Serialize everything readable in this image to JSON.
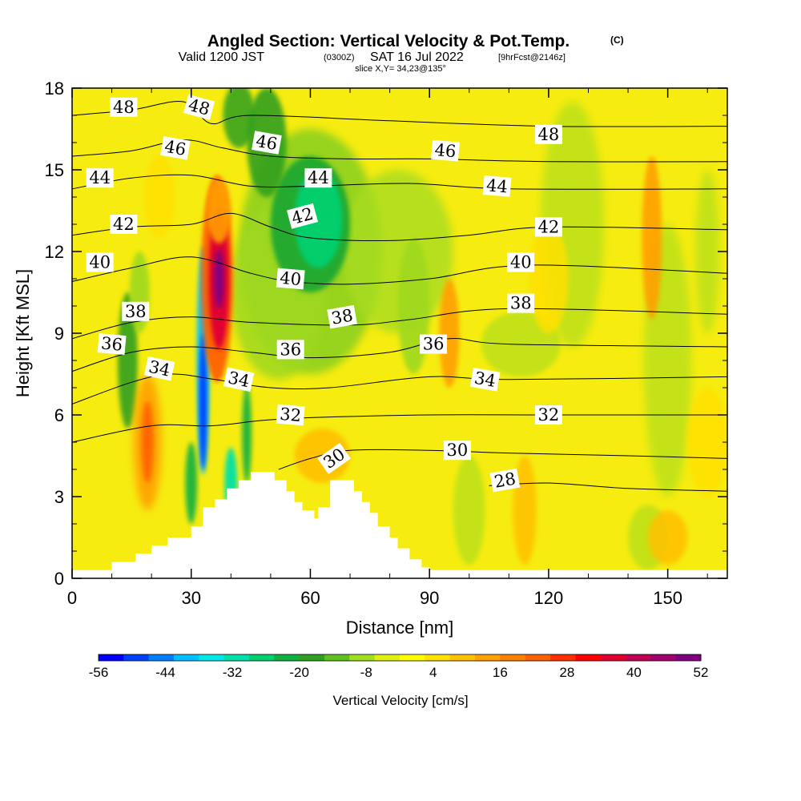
{
  "title": {
    "main": "Angled Section: Vertical Velocity & Pot.Temp.",
    "units_tag": "(C)",
    "valid_prefix": "Valid 1200 JST",
    "utc_tag": "(0300Z)",
    "valid_date": "SAT 16 Jul 2022",
    "forecast_tag": "[9hrFcst@2146z]",
    "slice": "slice X,Y= 34,23@135°"
  },
  "chart_data": {
    "type": "heatmap",
    "xlabel": "Distance [nm]",
    "ylabel": "Height [Kft MSL]",
    "xlim": [
      0,
      165
    ],
    "ylim": [
      0,
      18
    ],
    "x_ticks": [
      "0",
      "30",
      "60",
      "90",
      "120",
      "150"
    ],
    "y_ticks": [
      "0",
      "3",
      "6",
      "9",
      "12",
      "15",
      "18"
    ],
    "x_tick_values": [
      0,
      30,
      60,
      90,
      120,
      150
    ],
    "y_tick_values": [
      0,
      3,
      6,
      9,
      12,
      15,
      18
    ],
    "colorbar": {
      "title": "Vertical Velocity [cm/s]",
      "tick_labels": [
        "-56",
        "-44",
        "-32",
        "-20",
        "-8",
        "4",
        "16",
        "28",
        "40",
        "52"
      ],
      "colors": [
        "#0000ff",
        "#0040ff",
        "#0080ff",
        "#00c0ff",
        "#00e8e8",
        "#00e0a8",
        "#00d070",
        "#10b040",
        "#30a020",
        "#60c020",
        "#a0e020",
        "#e0f010",
        "#ffff00",
        "#ffe000",
        "#ffc000",
        "#ff9f00",
        "#ff8000",
        "#ff6000",
        "#ff3000",
        "#ff0000",
        "#e00030",
        "#c00050",
        "#a00070",
        "#800080"
      ]
    },
    "terrain_profile": [
      [
        0,
        0.3
      ],
      [
        10,
        0.3
      ],
      [
        10,
        0.6
      ],
      [
        16,
        0.6
      ],
      [
        16,
        0.9
      ],
      [
        20,
        0.9
      ],
      [
        20,
        1.2
      ],
      [
        24,
        1.2
      ],
      [
        24,
        1.5
      ],
      [
        30,
        1.5
      ],
      [
        30,
        1.9
      ],
      [
        33,
        1.9
      ],
      [
        33,
        2.6
      ],
      [
        36,
        2.6
      ],
      [
        36,
        2.9
      ],
      [
        39,
        2.9
      ],
      [
        39,
        3.3
      ],
      [
        42,
        3.3
      ],
      [
        42,
        3.6
      ],
      [
        45,
        3.6
      ],
      [
        45,
        3.9
      ],
      [
        51,
        3.9
      ],
      [
        51,
        3.6
      ],
      [
        54,
        3.6
      ],
      [
        54,
        3.2
      ],
      [
        56,
        3.2
      ],
      [
        56,
        2.8
      ],
      [
        58,
        2.8
      ],
      [
        58,
        2.5
      ],
      [
        61,
        2.5
      ],
      [
        61,
        2.2
      ],
      [
        62,
        2.2
      ],
      [
        62,
        2.6
      ],
      [
        65,
        2.6
      ],
      [
        65,
        3.6
      ],
      [
        71,
        3.6
      ],
      [
        71,
        3.2
      ],
      [
        73,
        3.2
      ],
      [
        73,
        2.8
      ],
      [
        75,
        2.8
      ],
      [
        75,
        2.4
      ],
      [
        77,
        2.4
      ],
      [
        77,
        1.9
      ],
      [
        80,
        1.9
      ],
      [
        80,
        1.5
      ],
      [
        82,
        1.5
      ],
      [
        82,
        1.1
      ],
      [
        85,
        1.1
      ],
      [
        85,
        0.7
      ],
      [
        88,
        0.7
      ],
      [
        88,
        0.4
      ],
      [
        90,
        0.4
      ],
      [
        90,
        0.3
      ],
      [
        165,
        0.3
      ]
    ],
    "isentropes": [
      {
        "label": "28",
        "points": [
          [
            105,
            3.4
          ],
          [
            120,
            3.5
          ],
          [
            140,
            3.3
          ],
          [
            165,
            3.2
          ]
        ]
      },
      {
        "label": "30",
        "points": [
          [
            52,
            4.0
          ],
          [
            60,
            4.4
          ],
          [
            70,
            4.7
          ],
          [
            90,
            4.7
          ],
          [
            110,
            4.6
          ],
          [
            140,
            4.5
          ],
          [
            165,
            4.4
          ]
        ]
      },
      {
        "label": "32",
        "points": [
          [
            0,
            5.0
          ],
          [
            20,
            5.6
          ],
          [
            35,
            5.6
          ],
          [
            48,
            5.8
          ],
          [
            60,
            5.9
          ],
          [
            90,
            6.0
          ],
          [
            120,
            6.0
          ],
          [
            165,
            6.0
          ]
        ]
      },
      {
        "label": "34",
        "points": [
          [
            0,
            6.4
          ],
          [
            15,
            7.2
          ],
          [
            25,
            7.5
          ],
          [
            36,
            7.3
          ],
          [
            50,
            7.0
          ],
          [
            65,
            7.0
          ],
          [
            90,
            7.4
          ],
          [
            110,
            7.3
          ],
          [
            165,
            7.4
          ]
        ]
      },
      {
        "label": "36",
        "points": [
          [
            0,
            7.6
          ],
          [
            15,
            8.3
          ],
          [
            30,
            8.5
          ],
          [
            45,
            8.3
          ],
          [
            60,
            8.1
          ],
          [
            80,
            8.3
          ],
          [
            95,
            8.8
          ],
          [
            110,
            8.6
          ],
          [
            165,
            8.5
          ]
        ]
      },
      {
        "label": "38",
        "points": [
          [
            0,
            8.8
          ],
          [
            15,
            9.4
          ],
          [
            30,
            9.6
          ],
          [
            45,
            9.4
          ],
          [
            70,
            9.3
          ],
          [
            85,
            9.5
          ],
          [
            110,
            9.9
          ],
          [
            165,
            9.7
          ]
        ]
      },
      {
        "label": "40",
        "points": [
          [
            0,
            10.9
          ],
          [
            15,
            11.4
          ],
          [
            30,
            11.8
          ],
          [
            45,
            11.2
          ],
          [
            55,
            10.9
          ],
          [
            70,
            10.8
          ],
          [
            90,
            11.0
          ],
          [
            115,
            11.5
          ],
          [
            165,
            11.2
          ]
        ]
      },
      {
        "label": "42",
        "points": [
          [
            0,
            12.6
          ],
          [
            15,
            12.9
          ],
          [
            30,
            13.0
          ],
          [
            40,
            13.4
          ],
          [
            50,
            12.9
          ],
          [
            60,
            12.5
          ],
          [
            80,
            12.4
          ],
          [
            100,
            12.6
          ],
          [
            120,
            12.9
          ],
          [
            165,
            12.8
          ]
        ]
      },
      {
        "label": "44",
        "points": [
          [
            0,
            14.3
          ],
          [
            15,
            14.7
          ],
          [
            30,
            14.8
          ],
          [
            45,
            14.4
          ],
          [
            60,
            14.4
          ],
          [
            85,
            14.5
          ],
          [
            110,
            14.3
          ],
          [
            165,
            14.3
          ]
        ]
      },
      {
        "label": "46",
        "points": [
          [
            0,
            15.5
          ],
          [
            15,
            15.7
          ],
          [
            28,
            16.1
          ],
          [
            38,
            15.8
          ],
          [
            50,
            15.5
          ],
          [
            70,
            15.4
          ],
          [
            90,
            15.4
          ],
          [
            120,
            15.3
          ],
          [
            165,
            15.3
          ]
        ]
      },
      {
        "label": "48",
        "points": [
          [
            0,
            17.0
          ],
          [
            15,
            17.2
          ],
          [
            28,
            17.5
          ],
          [
            35,
            16.7
          ],
          [
            45,
            17.0
          ],
          [
            80,
            16.8
          ],
          [
            120,
            16.6
          ],
          [
            165,
            16.6
          ]
        ]
      }
    ],
    "contour_labels": [
      {
        "text": "48",
        "x": 13,
        "y": 17.3,
        "angle": 0
      },
      {
        "text": "48",
        "x": 32,
        "y": 17.3,
        "angle": 15
      },
      {
        "text": "48",
        "x": 120,
        "y": 16.3,
        "angle": 0
      },
      {
        "text": "46",
        "x": 26,
        "y": 15.8,
        "angle": 10
      },
      {
        "text": "46",
        "x": 49,
        "y": 16.0,
        "angle": 10
      },
      {
        "text": "46",
        "x": 94,
        "y": 15.7,
        "angle": 5
      },
      {
        "text": "44",
        "x": 7,
        "y": 14.7,
        "angle": 0
      },
      {
        "text": "44",
        "x": 62,
        "y": 14.7,
        "angle": 0
      },
      {
        "text": "44",
        "x": 107,
        "y": 14.4,
        "angle": 5
      },
      {
        "text": "42",
        "x": 13,
        "y": 13.0,
        "angle": 0
      },
      {
        "text": "42",
        "x": 58,
        "y": 13.3,
        "angle": -15
      },
      {
        "text": "42",
        "x": 120,
        "y": 12.9,
        "angle": 0
      },
      {
        "text": "40",
        "x": 7,
        "y": 11.6,
        "angle": 0
      },
      {
        "text": "40",
        "x": 55,
        "y": 11.0,
        "angle": 5
      },
      {
        "text": "40",
        "x": 113,
        "y": 11.6,
        "angle": 0
      },
      {
        "text": "38",
        "x": 16,
        "y": 9.8,
        "angle": 0
      },
      {
        "text": "38",
        "x": 68,
        "y": 9.6,
        "angle": -10
      },
      {
        "text": "38",
        "x": 113,
        "y": 10.1,
        "angle": 0
      },
      {
        "text": "36",
        "x": 10,
        "y": 8.6,
        "angle": 5
      },
      {
        "text": "36",
        "x": 55,
        "y": 8.4,
        "angle": 0
      },
      {
        "text": "36",
        "x": 91,
        "y": 8.6,
        "angle": 0
      },
      {
        "text": "34",
        "x": 22,
        "y": 7.7,
        "angle": 12
      },
      {
        "text": "34",
        "x": 42,
        "y": 7.3,
        "angle": 12
      },
      {
        "text": "34",
        "x": 104,
        "y": 7.3,
        "angle": 10
      },
      {
        "text": "32",
        "x": 55,
        "y": 6.0,
        "angle": 5
      },
      {
        "text": "32",
        "x": 120,
        "y": 6.0,
        "angle": 0
      },
      {
        "text": "30",
        "x": 66,
        "y": 4.4,
        "angle": -35
      },
      {
        "text": "30",
        "x": 97,
        "y": 4.7,
        "angle": 0
      },
      {
        "text": "28",
        "x": 109,
        "y": 3.6,
        "angle": -10
      }
    ],
    "features": [
      {
        "name": "updraft-core",
        "center": [
          37,
          11
        ],
        "value_cm_s": 52
      },
      {
        "name": "downdraft-column",
        "center": [
          33,
          8
        ],
        "value_cm_s": -56
      },
      {
        "name": "downdraft-upper-trough",
        "center": [
          62,
          13
        ],
        "value_cm_s": -32
      },
      {
        "name": "updraft-low-left",
        "center": [
          19,
          5
        ],
        "value_cm_s": 20
      },
      {
        "name": "updraft-right",
        "center": [
          146,
          12.5
        ],
        "value_cm_s": 20
      },
      {
        "name": "updraft-mid-right",
        "center": [
          95,
          9
        ],
        "value_cm_s": 16
      }
    ]
  }
}
